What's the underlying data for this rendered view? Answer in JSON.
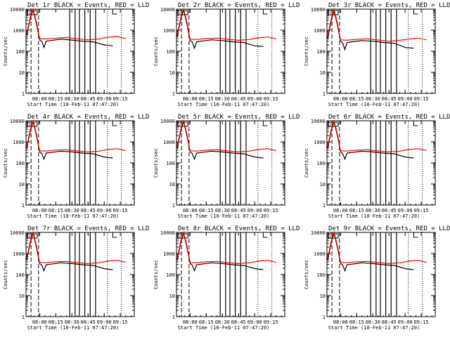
{
  "figure": {
    "ylabel": "Counts/sec",
    "xlabel": "Start Time (10-Feb-11 07:47:20)",
    "x_ticks": [
      "08:00",
      "08:15",
      "08:30",
      "08:45",
      "09:00",
      "09:15"
    ],
    "y_ticks": [
      "1",
      "10",
      "100",
      "1000",
      "10000"
    ],
    "legend_box": "LL"
  },
  "chart_data": [
    {
      "type": "line",
      "title": "Det 1r BLACK = Events, RED = LLD",
      "xlabel": "Start Time (10-Feb-11 07:47:20)",
      "ylabel": "Counts/sec",
      "y_scale": "log",
      "ylim": [
        1,
        10000
      ],
      "xlim": [
        "07:47:20",
        "09:28"
      ],
      "grid": false,
      "series": [
        {
          "name": "Events",
          "color": "#000000",
          "x": [
            "07:48",
            "07:52",
            "07:54",
            "07:57",
            "08:00",
            "08:02",
            "08:04",
            "08:06",
            "08:10",
            "08:20",
            "08:30",
            "08:40",
            "08:50",
            "09:00",
            "09:08"
          ],
          "y": [
            600,
            5000,
            9000,
            2000,
            350,
            300,
            150,
            300,
            320,
            380,
            340,
            300,
            280,
            200,
            180
          ]
        },
        {
          "name": "LLD",
          "color": "#ff0000",
          "x": [
            "07:48",
            "07:52",
            "07:54",
            "07:57",
            "08:00",
            "08:05",
            "08:15",
            "08:25",
            "08:35",
            "08:45",
            "08:55",
            "09:03",
            "09:12",
            "09:20"
          ],
          "y": [
            700,
            6000,
            10000,
            2500,
            400,
            380,
            420,
            450,
            390,
            350,
            380,
            460,
            500,
            400
          ]
        }
      ]
    },
    {
      "type": "line",
      "title": "Det 2r BLACK = Events, RED = LLD",
      "xlabel": "Start Time (10-Feb-11 07:47:20)",
      "ylabel": "Counts/sec",
      "y_scale": "log",
      "ylim": [
        1,
        10000
      ],
      "xlim": [
        "07:47:20",
        "09:28"
      ],
      "grid": false,
      "series": [
        {
          "name": "Events",
          "color": "#000000",
          "x": [
            "07:48",
            "07:52",
            "07:54",
            "07:57",
            "08:00",
            "08:02",
            "08:04",
            "08:06",
            "08:10",
            "08:20",
            "08:30",
            "08:40",
            "08:50",
            "09:00",
            "09:08"
          ],
          "y": [
            500,
            4500,
            9000,
            2000,
            320,
            280,
            140,
            280,
            300,
            350,
            320,
            280,
            260,
            180,
            170
          ]
        },
        {
          "name": "LLD",
          "color": "#ff0000",
          "x": [
            "07:48",
            "07:52",
            "07:54",
            "07:57",
            "08:00",
            "08:05",
            "08:15",
            "08:25",
            "08:35",
            "08:45",
            "08:55",
            "09:03",
            "09:12",
            "09:20"
          ],
          "y": [
            600,
            5500,
            10000,
            2500,
            380,
            360,
            400,
            420,
            370,
            330,
            360,
            430,
            470,
            380
          ]
        }
      ]
    },
    {
      "type": "line",
      "title": "Det 3r BLACK = Events, RED = LLD",
      "xlabel": "Start Time (10-Feb-11 07:47:20)",
      "ylabel": "Counts/sec",
      "y_scale": "log",
      "ylim": [
        1,
        10000
      ],
      "xlim": [
        "07:47:20",
        "09:28"
      ],
      "grid": false,
      "series": [
        {
          "name": "Events",
          "color": "#000000",
          "x": [
            "07:48",
            "07:52",
            "07:54",
            "07:57",
            "08:00",
            "08:02",
            "08:04",
            "08:06",
            "08:10",
            "08:20",
            "08:30",
            "08:40",
            "08:50",
            "09:00",
            "09:08"
          ],
          "y": [
            400,
            4000,
            8000,
            1800,
            300,
            250,
            120,
            260,
            280,
            320,
            300,
            260,
            240,
            150,
            140
          ]
        },
        {
          "name": "LLD",
          "color": "#ff0000",
          "x": [
            "07:48",
            "07:52",
            "07:54",
            "07:57",
            "08:00",
            "08:05",
            "08:15",
            "08:25",
            "08:35",
            "08:45",
            "08:55",
            "09:03",
            "09:12",
            "09:20"
          ],
          "y": [
            500,
            5000,
            9500,
            2200,
            350,
            330,
            370,
            390,
            340,
            300,
            330,
            380,
            420,
            350
          ]
        }
      ]
    },
    {
      "type": "line",
      "title": "Det 4r BLACK = Events, RED = LLD",
      "xlabel": "Start Time (10-Feb-11 07:47:20)",
      "ylabel": "Counts/sec",
      "y_scale": "log",
      "ylim": [
        1,
        10000
      ],
      "xlim": [
        "07:47:20",
        "09:28"
      ],
      "grid": false,
      "series": [
        {
          "name": "Events",
          "color": "#000000",
          "x": [
            "07:48",
            "07:52",
            "07:54",
            "07:57",
            "08:00",
            "08:02",
            "08:04",
            "08:06",
            "08:10",
            "08:20",
            "08:30",
            "08:40",
            "08:50",
            "09:00",
            "09:08"
          ],
          "y": [
            500,
            4500,
            9000,
            2000,
            330,
            280,
            150,
            290,
            310,
            360,
            330,
            290,
            270,
            190,
            170
          ]
        },
        {
          "name": "LLD",
          "color": "#ff0000",
          "x": [
            "07:48",
            "07:52",
            "07:54",
            "07:57",
            "08:00",
            "08:05",
            "08:15",
            "08:25",
            "08:35",
            "08:45",
            "08:55",
            "09:03",
            "09:12",
            "09:20"
          ],
          "y": [
            600,
            5500,
            10000,
            2400,
            380,
            360,
            400,
            420,
            370,
            330,
            360,
            430,
            470,
            380
          ]
        }
      ]
    },
    {
      "type": "line",
      "title": "Det 5r BLACK = Events, RED = LLD",
      "xlabel": "Start Time (10-Feb-11 07:47:20)",
      "ylabel": "Counts/sec",
      "y_scale": "log",
      "ylim": [
        1,
        10000
      ],
      "xlim": [
        "07:47:20",
        "09:28"
      ],
      "grid": false,
      "series": [
        {
          "name": "Events",
          "color": "#000000",
          "x": [
            "07:48",
            "07:52",
            "07:54",
            "07:57",
            "08:00",
            "08:02",
            "08:04",
            "08:06",
            "08:10",
            "08:20",
            "08:30",
            "08:40",
            "08:50",
            "09:00",
            "09:08"
          ],
          "y": [
            500,
            4500,
            9000,
            2000,
            330,
            280,
            150,
            290,
            310,
            360,
            330,
            290,
            270,
            190,
            170
          ]
        },
        {
          "name": "LLD",
          "color": "#ff0000",
          "x": [
            "07:48",
            "07:52",
            "07:54",
            "07:57",
            "08:00",
            "08:05",
            "08:15",
            "08:25",
            "08:35",
            "08:45",
            "08:55",
            "09:03",
            "09:12",
            "09:20"
          ],
          "y": [
            600,
            5500,
            10000,
            2400,
            380,
            360,
            400,
            420,
            370,
            330,
            360,
            430,
            470,
            380
          ]
        }
      ]
    },
    {
      "type": "line",
      "title": "Det 6r BLACK = Events, RED = LLD",
      "xlabel": "Start Time (10-Feb-11 07:47:20)",
      "ylabel": "Counts/sec",
      "y_scale": "log",
      "ylim": [
        1,
        10000
      ],
      "xlim": [
        "07:47:20",
        "09:28"
      ],
      "grid": false,
      "series": [
        {
          "name": "Events",
          "color": "#000000",
          "x": [
            "07:48",
            "07:52",
            "07:54",
            "07:57",
            "08:00",
            "08:02",
            "08:04",
            "08:06",
            "08:10",
            "08:20",
            "08:30",
            "08:40",
            "08:50",
            "09:00",
            "09:08"
          ],
          "y": [
            500,
            4500,
            9000,
            2000,
            330,
            280,
            150,
            290,
            310,
            360,
            330,
            290,
            270,
            190,
            170
          ]
        },
        {
          "name": "LLD",
          "color": "#ff0000",
          "x": [
            "07:48",
            "07:52",
            "07:54",
            "07:57",
            "08:00",
            "08:05",
            "08:15",
            "08:25",
            "08:35",
            "08:45",
            "08:55",
            "09:03",
            "09:12",
            "09:20"
          ],
          "y": [
            600,
            5500,
            10000,
            2400,
            380,
            360,
            400,
            420,
            370,
            330,
            360,
            430,
            470,
            380
          ]
        }
      ]
    },
    {
      "type": "line",
      "title": "Det 7r BLACK = Events, RED = LLD",
      "xlabel": "Start Time (10-Feb-11 07:47:20)",
      "ylabel": "Counts/sec",
      "y_scale": "log",
      "ylim": [
        1,
        10000
      ],
      "xlim": [
        "07:47:20",
        "09:28"
      ],
      "grid": false,
      "series": [
        {
          "name": "Events",
          "color": "#000000",
          "x": [
            "07:48",
            "07:52",
            "07:54",
            "07:57",
            "08:00",
            "08:02",
            "08:04",
            "08:06",
            "08:10",
            "08:20",
            "08:30",
            "08:40",
            "08:50",
            "09:00",
            "09:08"
          ],
          "y": [
            500,
            4500,
            9000,
            2000,
            330,
            280,
            150,
            290,
            310,
            360,
            330,
            290,
            270,
            190,
            170
          ]
        },
        {
          "name": "LLD",
          "color": "#ff0000",
          "x": [
            "07:48",
            "07:52",
            "07:54",
            "07:57",
            "08:00",
            "08:05",
            "08:15",
            "08:25",
            "08:35",
            "08:45",
            "08:55",
            "09:03",
            "09:12",
            "09:20"
          ],
          "y": [
            600,
            5500,
            10000,
            2400,
            380,
            360,
            400,
            420,
            370,
            330,
            360,
            430,
            470,
            380
          ]
        }
      ]
    },
    {
      "type": "line",
      "title": "Det 8r BLACK = Events, RED = LLD",
      "xlabel": "Start Time (10-Feb-11 07:47:20)",
      "ylabel": "Counts/sec",
      "y_scale": "log",
      "ylim": [
        1,
        10000
      ],
      "xlim": [
        "07:47:20",
        "09:28"
      ],
      "grid": false,
      "series": [
        {
          "name": "Events",
          "color": "#000000",
          "x": [
            "07:48",
            "07:52",
            "07:54",
            "07:57",
            "08:00",
            "08:02",
            "08:04",
            "08:06",
            "08:10",
            "08:20",
            "08:30",
            "08:40",
            "08:50",
            "09:00",
            "09:08"
          ],
          "y": [
            500,
            4500,
            9000,
            2000,
            330,
            280,
            150,
            290,
            310,
            360,
            330,
            290,
            270,
            190,
            170
          ]
        },
        {
          "name": "LLD",
          "color": "#ff0000",
          "x": [
            "07:48",
            "07:52",
            "07:54",
            "07:57",
            "08:00",
            "08:05",
            "08:15",
            "08:25",
            "08:35",
            "08:45",
            "08:55",
            "09:03",
            "09:12",
            "09:20"
          ],
          "y": [
            600,
            5500,
            10000,
            2400,
            380,
            360,
            400,
            420,
            370,
            330,
            360,
            430,
            470,
            380
          ]
        }
      ]
    },
    {
      "type": "line",
      "title": "Det 9r BLACK = Events, RED = LLD",
      "xlabel": "Start Time (10-Feb-11 07:47:20)",
      "ylabel": "Counts/sec",
      "y_scale": "log",
      "ylim": [
        1,
        10000
      ],
      "xlim": [
        "07:47:20",
        "09:28"
      ],
      "grid": false,
      "series": [
        {
          "name": "Events",
          "color": "#000000",
          "x": [
            "07:48",
            "07:52",
            "07:54",
            "07:57",
            "08:00",
            "08:02",
            "08:04",
            "08:06",
            "08:10",
            "08:20",
            "08:30",
            "08:40",
            "08:50",
            "09:00",
            "09:08"
          ],
          "y": [
            500,
            4500,
            9000,
            2000,
            330,
            280,
            150,
            290,
            310,
            360,
            330,
            290,
            270,
            190,
            170
          ]
        },
        {
          "name": "LLD",
          "color": "#ff0000",
          "x": [
            "07:48",
            "07:52",
            "07:54",
            "07:57",
            "08:00",
            "08:05",
            "08:15",
            "08:25",
            "08:35",
            "08:45",
            "08:55",
            "09:03",
            "09:12",
            "09:20"
          ],
          "y": [
            600,
            5500,
            10000,
            2400,
            380,
            360,
            400,
            420,
            370,
            330,
            360,
            430,
            470,
            380
          ]
        }
      ]
    }
  ]
}
